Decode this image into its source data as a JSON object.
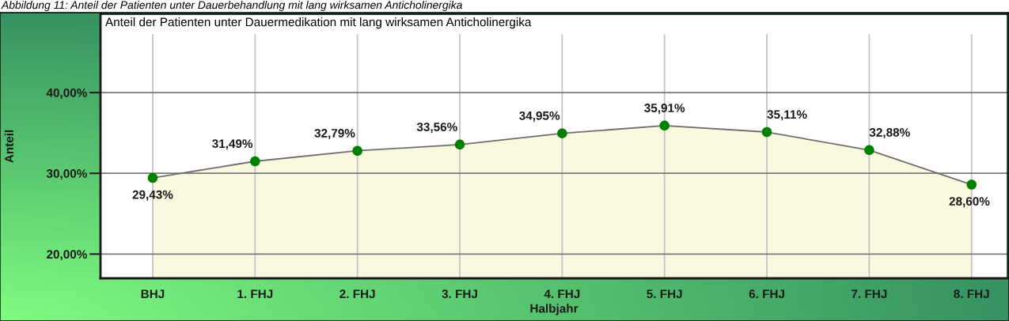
{
  "chart_data": {
    "type": "area",
    "title": "Anteil der Patienten unter Dauermedikation mit lang wirksamen Anticholinergika",
    "annotations": [
      "Abbildung 11: Anteil der Patienten unter Dauerbehandlung mit lang wirksamen Anticholinergika"
    ],
    "xlabel": "Halbjahr",
    "ylabel": "Anteil",
    "categories": [
      "BHJ",
      "1. FHJ",
      "2. FHJ",
      "3. FHJ",
      "4. FHJ",
      "5. FHJ",
      "6. FHJ",
      "7. FHJ",
      "8. FHJ"
    ],
    "series": [
      {
        "color": "#f9f9df",
        "values": [
          29.43,
          31.49,
          32.79,
          33.56,
          34.95,
          35.91,
          35.11,
          32.88,
          28.6
        ],
        "value_labels": [
          "29,43%",
          "31,49%",
          "32,79%",
          "33,56%",
          "34,95%",
          "35,91%",
          "35,11%",
          "32,88%",
          "28,60%"
        ]
      }
    ],
    "ylim": [
      17,
      49.7
    ],
    "yticks": [
      {
        "value": 20,
        "label": "20,00%"
      },
      {
        "value": 30,
        "label": "30,00%"
      },
      {
        "value": 40,
        "label": "40,00%"
      }
    ],
    "grid": true,
    "marker": "circle"
  }
}
